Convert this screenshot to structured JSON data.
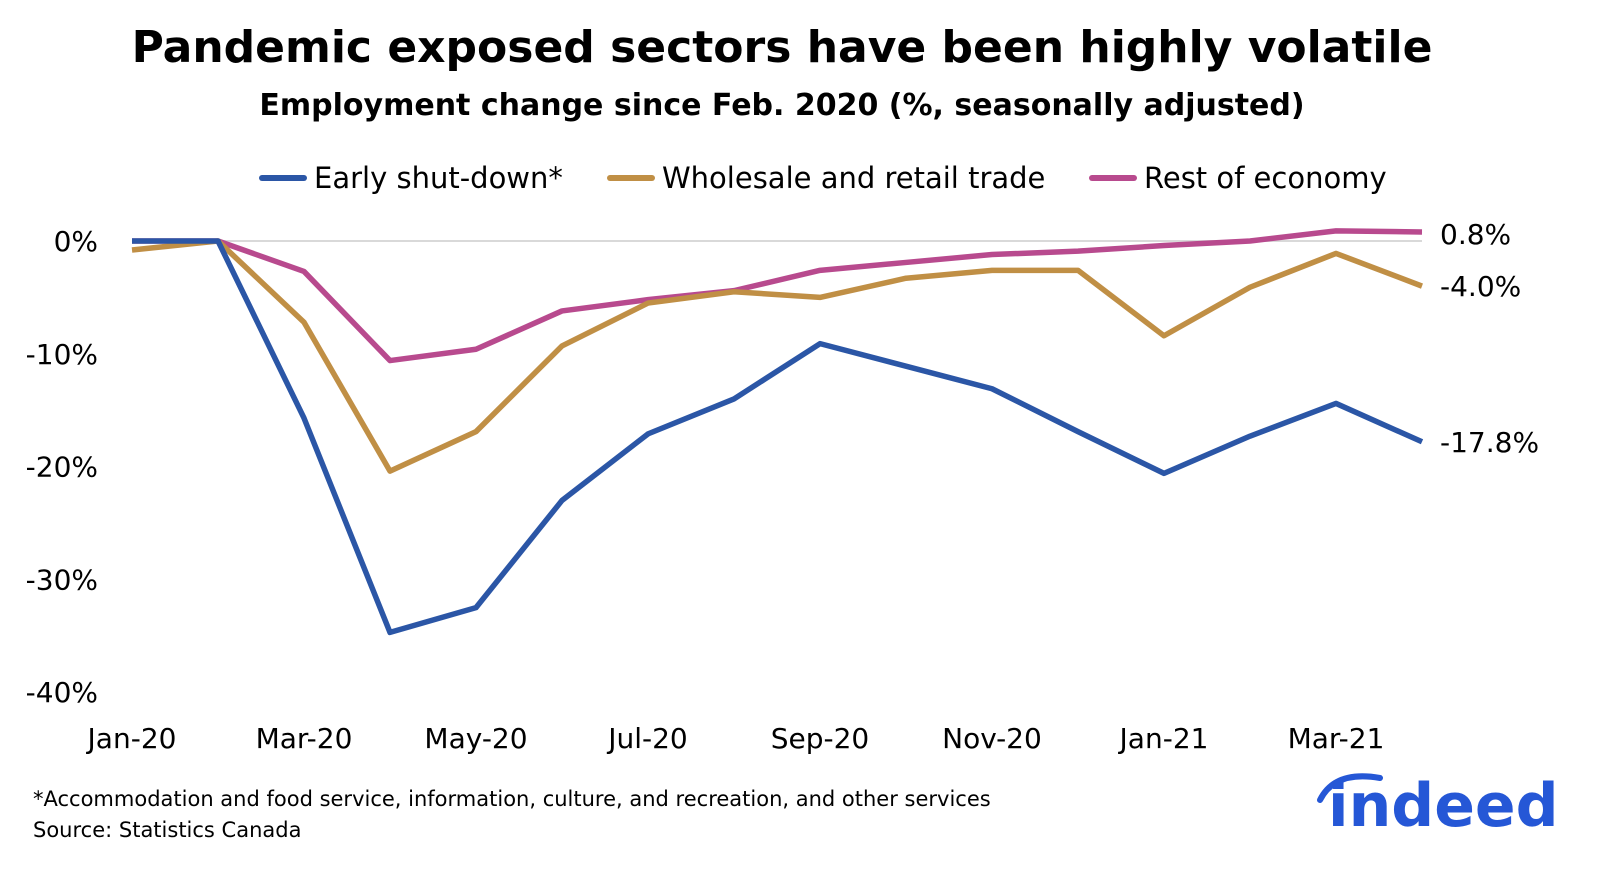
{
  "chart_data": {
    "type": "line",
    "title": "Pandemic exposed sectors have been highly volatile",
    "subtitle": "Employment change since Feb. 2020 (%, seasonally adjusted)",
    "xlabel": "",
    "ylabel": "",
    "x": [
      "Jan-20",
      "Feb-20",
      "Mar-20",
      "Apr-20",
      "May-20",
      "Jun-20",
      "Jul-20",
      "Aug-20",
      "Sep-20",
      "Oct-20",
      "Nov-20",
      "Dec-20",
      "Jan-21",
      "Feb-21",
      "Mar-21",
      "Apr-21"
    ],
    "x_tick_labels": [
      "Jan-20",
      "Mar-20",
      "May-20",
      "Jul-20",
      "Sep-20",
      "Nov-20",
      "Jan-21",
      "Mar-21"
    ],
    "y_tick_labels": [
      "0%",
      "-10%",
      "-20%",
      "-30%",
      "-40%"
    ],
    "y_ticks": [
      0,
      -10,
      -20,
      -30,
      -40
    ],
    "ylim": [
      -40,
      2
    ],
    "grid": false,
    "zero_line": true,
    "legend_position": "top",
    "series": [
      {
        "name": "Early shut-down*",
        "color": "#2b56a6",
        "end_label": "-17.8%",
        "values": [
          0,
          0,
          -15.7,
          -34.7,
          -32.5,
          -23.0,
          -17.1,
          -14.0,
          -9.1,
          -11.1,
          -13.1,
          -16.9,
          -20.6,
          -17.3,
          -14.4,
          -17.8
        ]
      },
      {
        "name": "Wholesale and retail trade",
        "color": "#c08f45",
        "end_label": "-4.0%",
        "values": [
          -0.8,
          0,
          -7.2,
          -20.4,
          -16.9,
          -9.3,
          -5.5,
          -4.5,
          -5.0,
          -3.3,
          -2.6,
          -2.6,
          -8.4,
          -4.1,
          -1.1,
          -4.0
        ]
      },
      {
        "name": "Rest of economy",
        "color": "#b84a8e",
        "end_label": "0.8%",
        "values": [
          0,
          0,
          -2.7,
          -10.6,
          -9.6,
          -6.2,
          -5.2,
          -4.4,
          -2.6,
          -1.9,
          -1.2,
          -0.9,
          -0.4,
          0,
          0.9,
          0.8
        ]
      }
    ]
  },
  "footnote": "*Accommodation and food service, information, culture, and recreation, and other services",
  "source": "Source: Statistics Canada",
  "logo_text": "indeed",
  "logo_color": "#2557d6"
}
